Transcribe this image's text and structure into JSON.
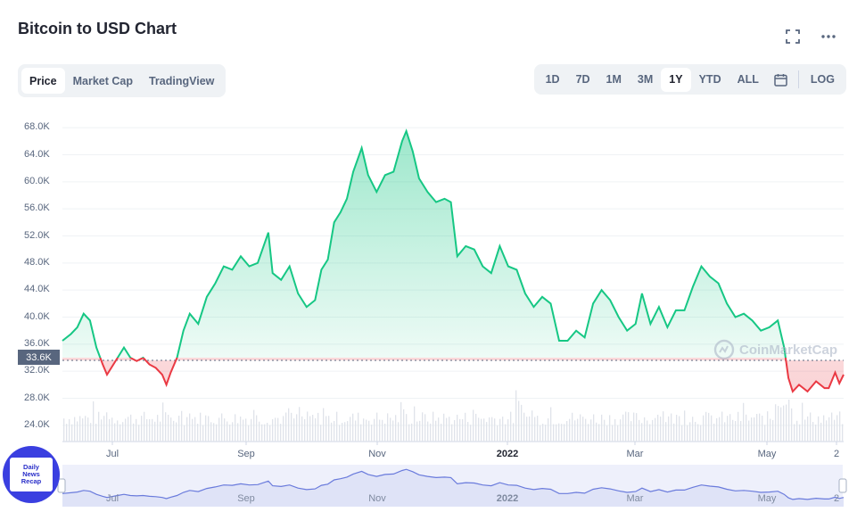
{
  "header": {
    "title": "Bitcoin to USD Chart",
    "icons": [
      "fullscreen-icon",
      "more-icon"
    ]
  },
  "view_tabs": [
    {
      "label": "Price",
      "active": true
    },
    {
      "label": "Market Cap",
      "active": false
    },
    {
      "label": "TradingView",
      "active": false
    }
  ],
  "range_tabs": [
    {
      "label": "1D",
      "active": false
    },
    {
      "label": "7D",
      "active": false
    },
    {
      "label": "1M",
      "active": false
    },
    {
      "label": "3M",
      "active": false
    },
    {
      "label": "1Y",
      "active": true
    },
    {
      "label": "YTD",
      "active": false
    },
    {
      "label": "ALL",
      "active": false
    }
  ],
  "log_label": "LOG",
  "current_price_label": "33.6K",
  "watermark": "CoinMarketCap",
  "badge_lines": [
    "Daily",
    "News",
    "Recap"
  ],
  "colors": {
    "up": "#16c784",
    "down": "#ea3943",
    "navigator": "#6a7bdc",
    "text_muted": "#58667e"
  },
  "chart_data": {
    "type": "line",
    "title": "",
    "xlabel": "",
    "ylabel": "",
    "ylim": [
      22000,
      70000
    ],
    "yticks": [
      "68.0K",
      "64.0K",
      "60.0K",
      "56.0K",
      "52.0K",
      "48.0K",
      "44.0K",
      "40.0K",
      "36.0K",
      "32.0K",
      "28.0K",
      "24.0K"
    ],
    "xticks": [
      {
        "label": "Jul",
        "bold": false
      },
      {
        "label": "Sep",
        "bold": false
      },
      {
        "label": "Nov",
        "bold": false
      },
      {
        "label": "2022",
        "bold": true
      },
      {
        "label": "Mar",
        "bold": false
      },
      {
        "label": "May",
        "bold": false
      },
      {
        "label": "2",
        "bold": false
      }
    ],
    "navigator_xticks": [
      "Jul",
      "Sep",
      "Nov",
      "2022",
      "Mar",
      "May",
      "2"
    ],
    "baseline": 33600,
    "series": [
      {
        "points": [
          [
            "2021-06-01",
            36500
          ],
          [
            "2021-06-05",
            37500
          ],
          [
            "2021-06-08",
            38500
          ],
          [
            "2021-06-11",
            40500
          ],
          [
            "2021-06-14",
            39500
          ],
          [
            "2021-06-17",
            35500
          ],
          [
            "2021-06-20",
            33000
          ],
          [
            "2021-06-22",
            31500
          ],
          [
            "2021-06-24",
            32500
          ],
          [
            "2021-06-27",
            34000
          ],
          [
            "2021-06-30",
            35500
          ],
          [
            "2021-07-03",
            34000
          ],
          [
            "2021-07-06",
            33500
          ],
          [
            "2021-07-09",
            34000
          ],
          [
            "2021-07-12",
            33000
          ],
          [
            "2021-07-15",
            32500
          ],
          [
            "2021-07-18",
            31500
          ],
          [
            "2021-07-20",
            30000
          ],
          [
            "2021-07-22",
            31800
          ],
          [
            "2021-07-25",
            34000
          ],
          [
            "2021-07-28",
            38000
          ],
          [
            "2021-07-31",
            40500
          ],
          [
            "2021-08-04",
            39000
          ],
          [
            "2021-08-08",
            43000
          ],
          [
            "2021-08-12",
            45000
          ],
          [
            "2021-08-16",
            47500
          ],
          [
            "2021-08-20",
            47000
          ],
          [
            "2021-08-24",
            49000
          ],
          [
            "2021-08-28",
            47500
          ],
          [
            "2021-09-01",
            48000
          ],
          [
            "2021-09-06",
            52500
          ],
          [
            "2021-09-08",
            46500
          ],
          [
            "2021-09-12",
            45500
          ],
          [
            "2021-09-16",
            47500
          ],
          [
            "2021-09-20",
            43500
          ],
          [
            "2021-09-24",
            41500
          ],
          [
            "2021-09-28",
            42500
          ],
          [
            "2021-10-01",
            47000
          ],
          [
            "2021-10-04",
            48500
          ],
          [
            "2021-10-07",
            54000
          ],
          [
            "2021-10-10",
            55500
          ],
          [
            "2021-10-13",
            57500
          ],
          [
            "2021-10-16",
            61500
          ],
          [
            "2021-10-20",
            65000
          ],
          [
            "2021-10-23",
            61000
          ],
          [
            "2021-10-27",
            58500
          ],
          [
            "2021-10-31",
            61000
          ],
          [
            "2021-11-04",
            61500
          ],
          [
            "2021-11-08",
            66000
          ],
          [
            "2021-11-10",
            67500
          ],
          [
            "2021-11-13",
            64500
          ],
          [
            "2021-11-16",
            60500
          ],
          [
            "2021-11-20",
            58500
          ],
          [
            "2021-11-24",
            57000
          ],
          [
            "2021-11-28",
            57500
          ],
          [
            "2021-12-01",
            57000
          ],
          [
            "2021-12-04",
            49000
          ],
          [
            "2021-12-08",
            50500
          ],
          [
            "2021-12-12",
            50000
          ],
          [
            "2021-12-16",
            47500
          ],
          [
            "2021-12-20",
            46500
          ],
          [
            "2021-12-24",
            50500
          ],
          [
            "2021-12-28",
            47500
          ],
          [
            "2022-01-01",
            47000
          ],
          [
            "2022-01-05",
            43500
          ],
          [
            "2022-01-09",
            41500
          ],
          [
            "2022-01-13",
            43000
          ],
          [
            "2022-01-17",
            42000
          ],
          [
            "2022-01-21",
            36500
          ],
          [
            "2022-01-25",
            36500
          ],
          [
            "2022-01-29",
            38000
          ],
          [
            "2022-02-02",
            37000
          ],
          [
            "2022-02-06",
            42000
          ],
          [
            "2022-02-10",
            44000
          ],
          [
            "2022-02-14",
            42500
          ],
          [
            "2022-02-18",
            40000
          ],
          [
            "2022-02-22",
            38000
          ],
          [
            "2022-02-26",
            39000
          ],
          [
            "2022-03-01",
            43500
          ],
          [
            "2022-03-05",
            39000
          ],
          [
            "2022-03-09",
            41500
          ],
          [
            "2022-03-13",
            38500
          ],
          [
            "2022-03-17",
            41000
          ],
          [
            "2022-03-21",
            41000
          ],
          [
            "2022-03-25",
            44500
          ],
          [
            "2022-03-29",
            47500
          ],
          [
            "2022-04-02",
            46000
          ],
          [
            "2022-04-06",
            45000
          ],
          [
            "2022-04-10",
            42000
          ],
          [
            "2022-04-14",
            40000
          ],
          [
            "2022-04-18",
            40500
          ],
          [
            "2022-04-22",
            39500
          ],
          [
            "2022-04-26",
            38000
          ],
          [
            "2022-04-30",
            38500
          ],
          [
            "2022-05-04",
            39500
          ],
          [
            "2022-05-07",
            35500
          ],
          [
            "2022-05-09",
            31000
          ],
          [
            "2022-05-11",
            29000
          ],
          [
            "2022-05-14",
            30000
          ],
          [
            "2022-05-18",
            29000
          ],
          [
            "2022-05-22",
            30500
          ],
          [
            "2022-05-26",
            29500
          ],
          [
            "2022-05-28",
            29500
          ],
          [
            "2022-05-31",
            31800
          ],
          [
            "2022-06-02",
            30200
          ],
          [
            "2022-06-04",
            31500
          ]
        ]
      }
    ]
  }
}
